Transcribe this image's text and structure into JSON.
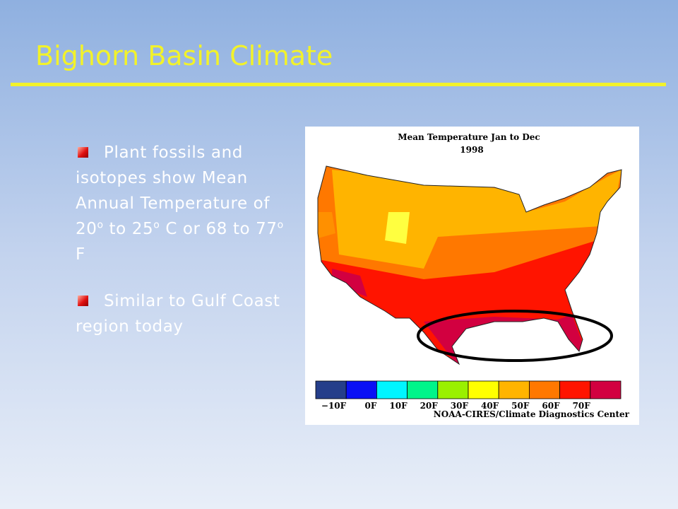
{
  "header": {
    "title": "Bighorn Basin Climate"
  },
  "bullets": [
    {
      "parts": [
        {
          "text": "Plant fossils and isotopes show Mean Annual Temperature of 20"
        },
        {
          "sup": "o"
        },
        {
          "text": " to 25"
        },
        {
          "sup": "o"
        },
        {
          "text": " C or 68 to 77"
        },
        {
          "sup": "o"
        },
        {
          "text": " F"
        }
      ]
    },
    {
      "parts": [
        {
          "text": "Similar to Gulf Coast region today"
        }
      ]
    }
  ],
  "map": {
    "title": "Mean Temperature Jan to Dec",
    "year": "1998",
    "legend": {
      "colors": [
        "#253e8a",
        "#0a10f5",
        "#00f5ff",
        "#00f58a",
        "#9af000",
        "#ffff00",
        "#ffb400",
        "#ff7800",
        "#ff1400",
        "#d20040"
      ],
      "labels": [
        "−10F",
        "0F",
        "10F",
        "20F",
        "30F",
        "40F",
        "50F",
        "60F",
        "70F"
      ]
    },
    "credit": "NOAA-CIRES/Climate Diagnostics Center"
  }
}
